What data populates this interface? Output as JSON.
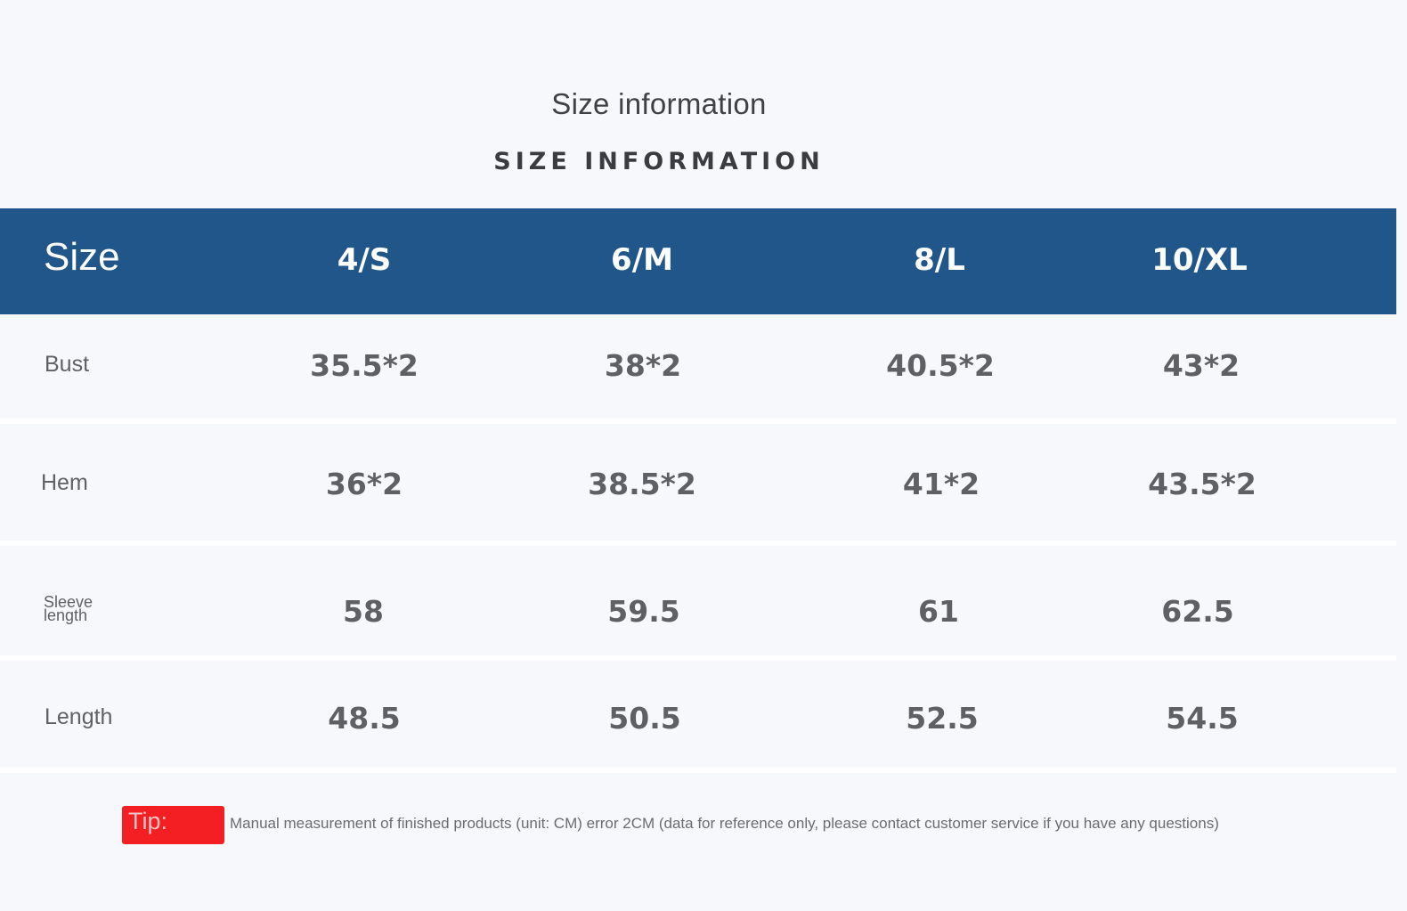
{
  "title": "Size information",
  "subtitle": "SIZE INFORMATION",
  "table": {
    "corner_label": "Size",
    "sizes": [
      "4/S",
      "6/M",
      "8/L",
      "10/XL"
    ],
    "rows": [
      {
        "label": "Bust",
        "values": [
          "35.5*2",
          "38*2",
          "40.5*2",
          "43*2"
        ]
      },
      {
        "label": "Hem",
        "values": [
          "36*2",
          "38.5*2",
          "41*2",
          "43.5*2"
        ]
      },
      {
        "label": "Sleeve length",
        "values": [
          "58",
          "59.5",
          "61",
          "62.5"
        ]
      },
      {
        "label": "Length",
        "values": [
          "48.5",
          "50.5",
          "52.5",
          "54.5"
        ]
      }
    ]
  },
  "tip": {
    "label": "Tip:",
    "text": "Manual measurement of finished products (unit: CM) error 2CM (data for reference only, please contact customer service if you have any questions)"
  },
  "colors": {
    "header_background": "#20568a",
    "tip_badge": "#f31f22"
  }
}
